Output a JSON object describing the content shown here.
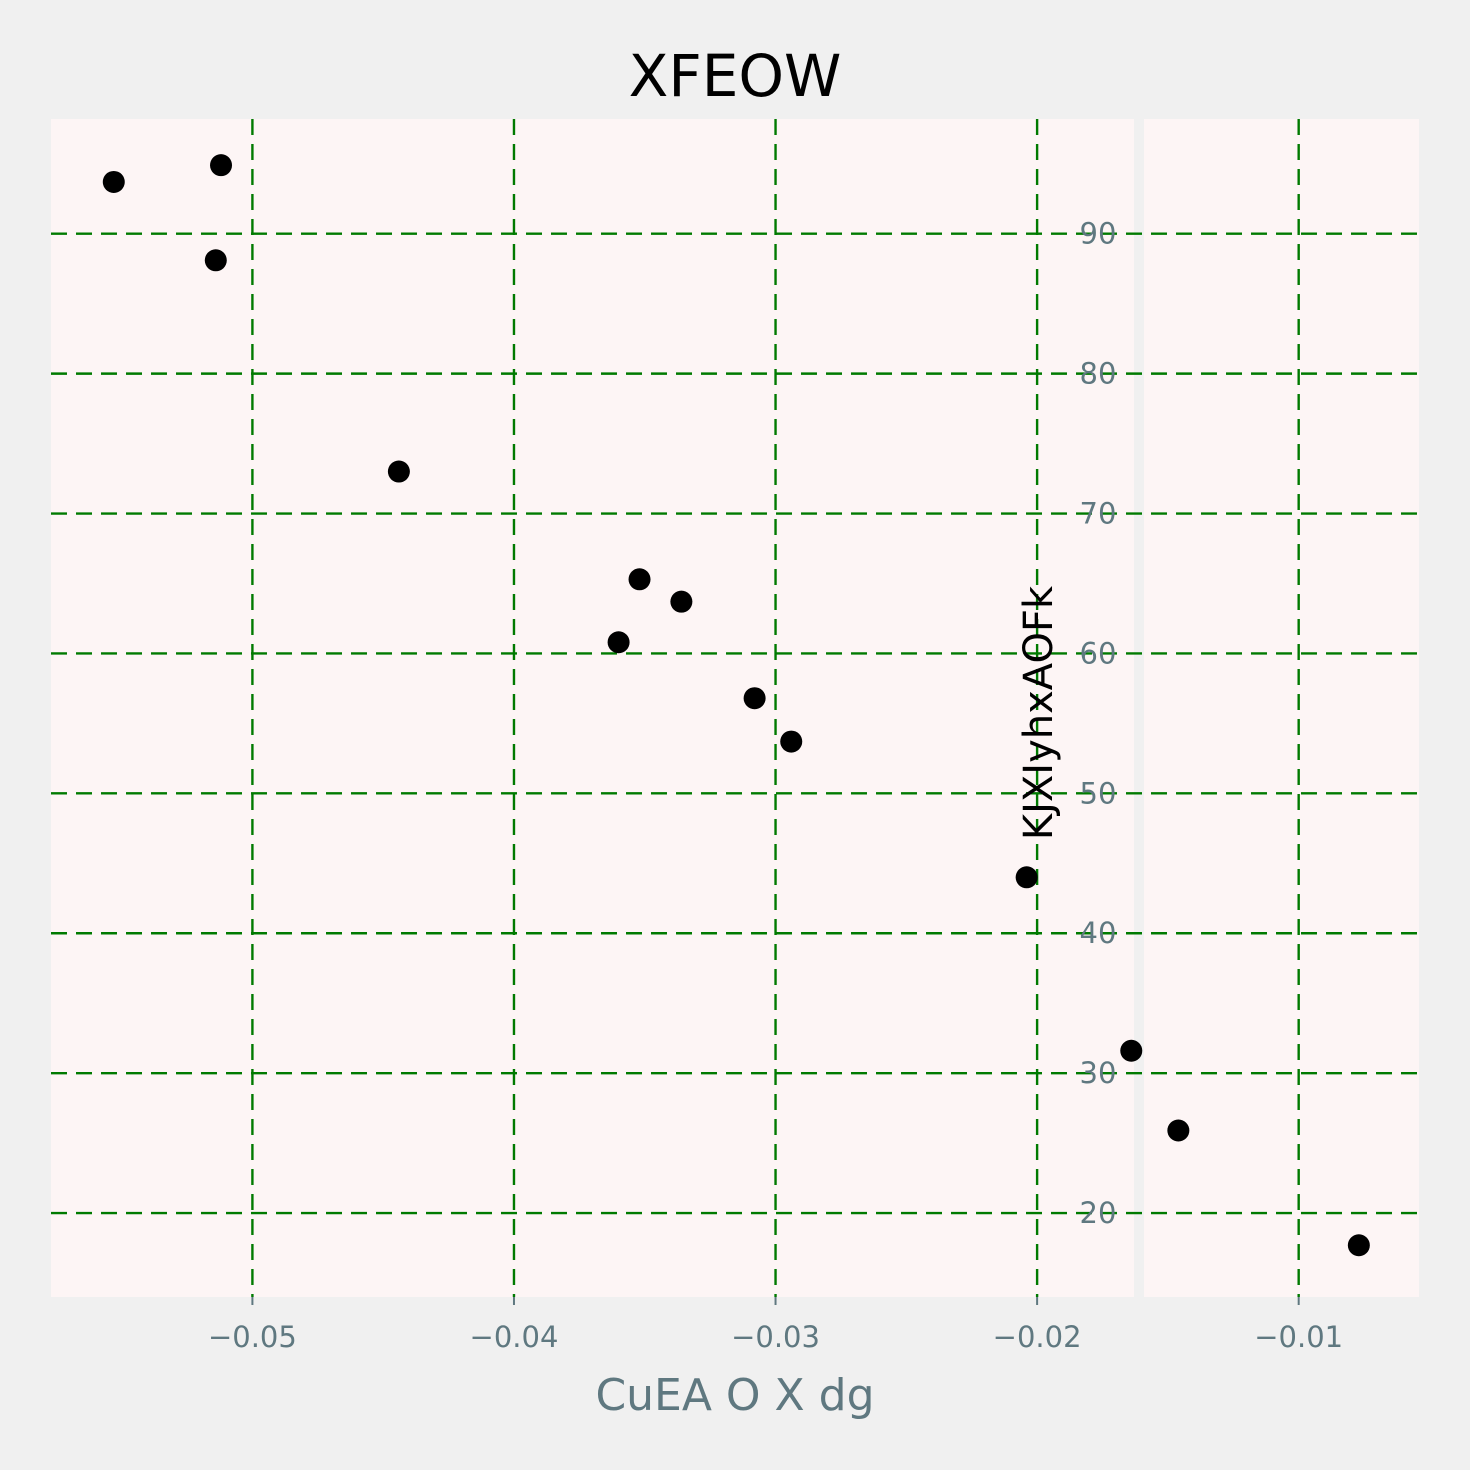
{
  "chart_data": {
    "type": "scatter",
    "title": "XFEOW",
    "xlabel": "CuEA O X dg",
    "ylabel": "KJXIyhxAOFk",
    "xlim": [
      -0.0577,
      -0.0054
    ],
    "ylim": [
      14.0,
      98.2
    ],
    "xticks": [
      -0.05,
      -0.04,
      -0.03,
      -0.02,
      -0.01
    ],
    "xtick_labels": [
      "−0.05",
      "−0.04",
      "−0.03",
      "−0.02",
      "−0.01"
    ],
    "yticks": [
      20,
      30,
      40,
      50,
      60,
      70,
      80,
      90
    ],
    "ytick_labels": [
      "20",
      "30",
      "40",
      "50",
      "60",
      "70",
      "80",
      "90"
    ],
    "grid": true,
    "marker_color": "#000000",
    "grid_color": "#007a00",
    "plot_background": "#fdf5f5",
    "figure_background": "#f0f0f0",
    "series": [
      {
        "points": [
          {
            "x": -0.0553,
            "y": 93.7
          },
          {
            "x": -0.0512,
            "y": 94.9
          },
          {
            "x": -0.0514,
            "y": 88.1
          },
          {
            "x": -0.0444,
            "y": 73.0
          },
          {
            "x": -0.0352,
            "y": 65.3
          },
          {
            "x": -0.0336,
            "y": 63.7
          },
          {
            "x": -0.036,
            "y": 60.8
          },
          {
            "x": -0.0308,
            "y": 56.8
          },
          {
            "x": -0.0294,
            "y": 53.7
          },
          {
            "x": -0.0204,
            "y": 44.0
          },
          {
            "x": -0.0164,
            "y": 31.6
          },
          {
            "x": -0.0146,
            "y": 25.9
          },
          {
            "x": -0.0077,
            "y": 17.7
          }
        ]
      }
    ]
  }
}
